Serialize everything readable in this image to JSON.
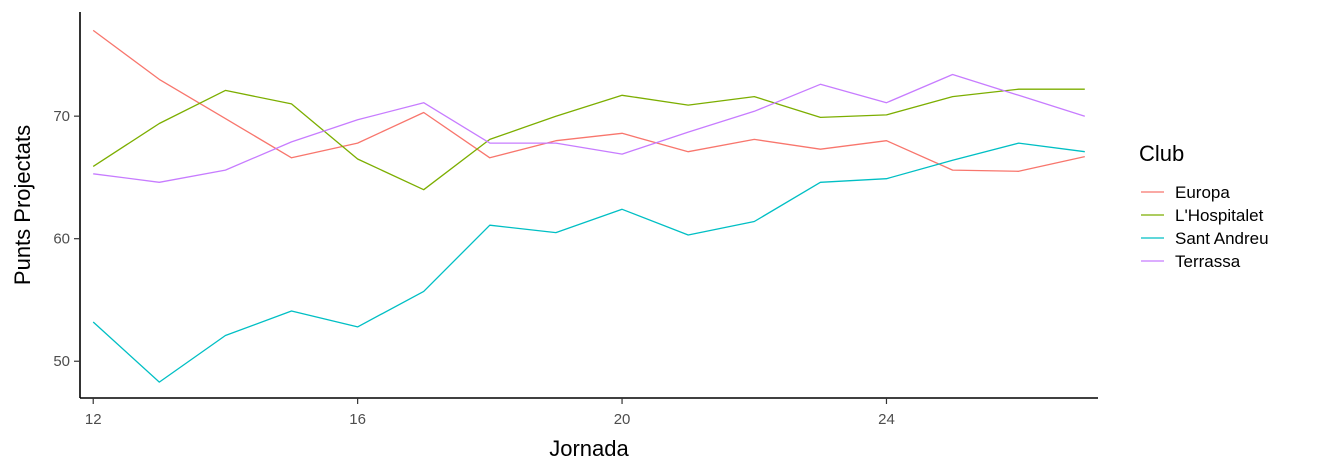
{
  "chart_data": {
    "type": "line",
    "xlabel": "Jornada",
    "ylabel": "Punts Projectats",
    "xlim": [
      11.8,
      27.2
    ],
    "ylim": [
      47,
      78.5
    ],
    "x_ticks": [
      12,
      16,
      20,
      24
    ],
    "y_ticks": [
      50,
      60,
      70
    ],
    "grid": false,
    "legend": {
      "title": "Club",
      "position": "right"
    },
    "x": [
      12,
      13,
      14,
      15,
      16,
      17,
      18,
      19,
      20,
      21,
      22,
      23,
      24,
      25,
      26,
      27
    ],
    "series": [
      {
        "name": "Europa",
        "color": "#F8766D",
        "values": [
          77.0,
          73.0,
          69.8,
          66.6,
          67.8,
          70.3,
          66.6,
          68.0,
          68.6,
          67.1,
          68.1,
          67.3,
          68.0,
          65.6,
          65.5,
          66.7
        ]
      },
      {
        "name": "L'Hospitalet",
        "color": "#7CAE00",
        "values": [
          65.9,
          69.4,
          72.1,
          71.0,
          66.5,
          64.0,
          68.1,
          70.0,
          71.7,
          70.9,
          71.6,
          69.9,
          70.1,
          71.6,
          72.2,
          72.2
        ]
      },
      {
        "name": "Sant Andreu",
        "color": "#00BFC4",
        "values": [
          53.2,
          48.3,
          52.1,
          54.1,
          52.8,
          55.7,
          61.1,
          60.5,
          62.4,
          60.3,
          61.4,
          64.6,
          64.9,
          66.4,
          67.8,
          67.1
        ]
      },
      {
        "name": "Terrassa",
        "color": "#C77CFF",
        "values": [
          65.3,
          64.6,
          65.6,
          67.9,
          69.7,
          71.1,
          67.8,
          67.8,
          66.9,
          68.7,
          70.4,
          72.6,
          71.1,
          73.4,
          71.7,
          70.0
        ]
      }
    ]
  }
}
